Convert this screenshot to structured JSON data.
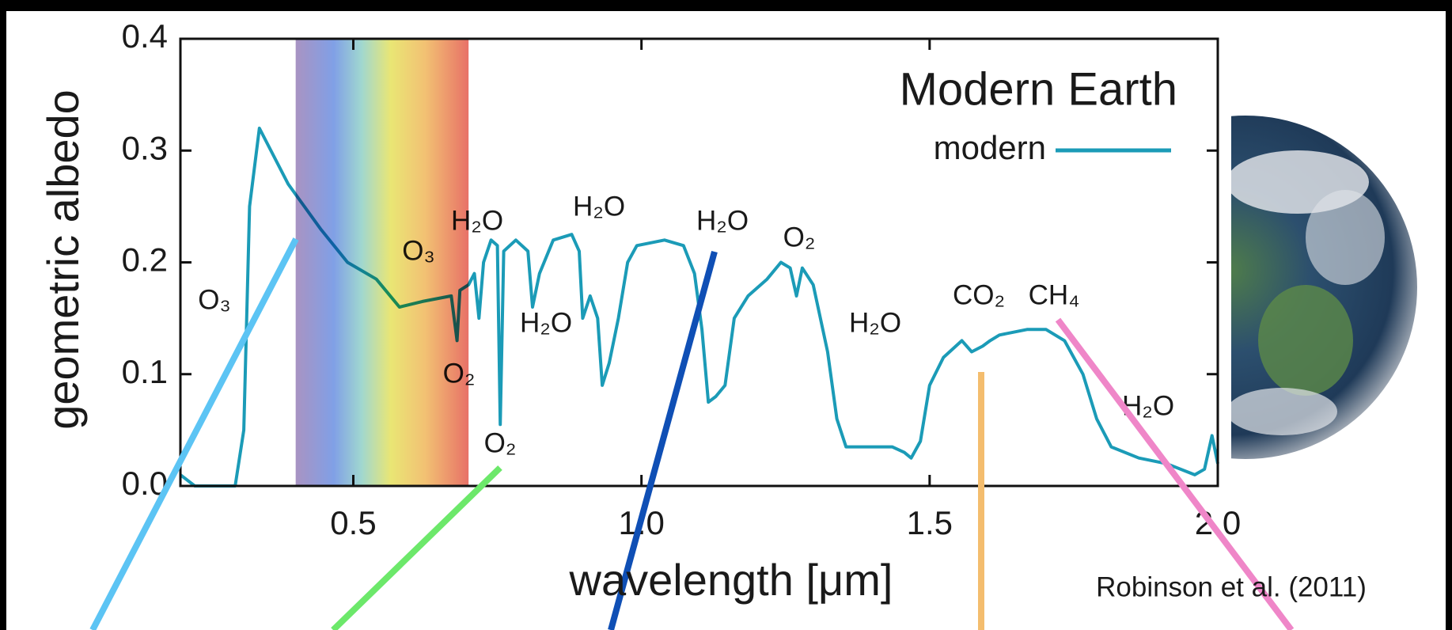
{
  "chart_data": {
    "type": "line",
    "title": "Modern Earth",
    "source": "Robinson et al. (2011)",
    "xlabel": "wavelength [μm]",
    "ylabel": "geometric albedo",
    "xlim": [
      0.2,
      2.0
    ],
    "ylim": [
      0,
      0.4
    ],
    "xticks": [
      0.5,
      {
        "value": 1,
        "label": "1.0"
      },
      1.5,
      {
        "value": 2,
        "label": "2.0"
      }
    ],
    "yticks": [
      {
        "value": 0,
        "label": "0.0"
      },
      0.1,
      0.2,
      0.3,
      0.4
    ],
    "shaded_xrange": [
      0.4,
      0.7
    ],
    "legend": "upper right",
    "x": [
      0.2,
      0.225,
      0.295,
      0.31,
      0.32,
      0.337,
      0.387,
      0.443,
      0.49,
      0.54,
      0.58,
      0.62,
      0.67,
      0.68,
      0.685,
      0.7,
      0.71,
      0.718,
      0.726,
      0.739,
      0.75,
      0.755,
      0.761,
      0.782,
      0.803,
      0.811,
      0.823,
      0.847,
      0.879,
      0.892,
      0.898,
      0.911,
      0.924,
      0.932,
      0.944,
      0.96,
      0.976,
      0.992,
      1.04,
      1.073,
      1.092,
      1.105,
      1.116,
      1.129,
      1.145,
      1.161,
      1.185,
      1.218,
      1.242,
      1.258,
      1.269,
      1.279,
      1.298,
      1.323,
      1.339,
      1.355,
      1.395,
      1.435,
      1.456,
      1.468,
      1.484,
      1.5,
      1.524,
      1.556,
      1.573,
      1.592,
      1.605,
      1.621,
      1.669,
      1.702,
      1.734,
      1.766,
      1.79,
      1.815,
      1.863,
      1.911,
      1.96,
      1.977,
      1.99,
      2.0
    ],
    "series": [
      {
        "name": "modern",
        "color": "#1b9bb7",
        "values": [
          0.01,
          0.0,
          0.0,
          0.05,
          0.25,
          0.32,
          0.27,
          0.23,
          0.2,
          0.185,
          0.16,
          0.165,
          0.17,
          0.13,
          0.175,
          0.18,
          0.19,
          0.15,
          0.2,
          0.22,
          0.215,
          0.055,
          0.21,
          0.22,
          0.21,
          0.16,
          0.19,
          0.22,
          0.225,
          0.21,
          0.15,
          0.17,
          0.15,
          0.09,
          0.11,
          0.15,
          0.2,
          0.215,
          0.22,
          0.215,
          0.19,
          0.14,
          0.075,
          0.08,
          0.09,
          0.15,
          0.17,
          0.185,
          0.2,
          0.195,
          0.17,
          0.195,
          0.18,
          0.12,
          0.06,
          0.035,
          0.035,
          0.035,
          0.03,
          0.025,
          0.04,
          0.09,
          0.115,
          0.13,
          0.12,
          0.125,
          0.13,
          0.135,
          0.14,
          0.14,
          0.13,
          0.1,
          0.06,
          0.035,
          0.025,
          0.02,
          0.01,
          0.015,
          0.045,
          0.02
        ]
      }
    ],
    "annotations": [
      "O₃",
      "O₃",
      "H₂O",
      "O₂",
      "H₂O",
      "H₂O",
      "O₂",
      "H₂O",
      "O₂",
      "H₂O",
      "CO₂",
      "CH₄",
      "H₂O"
    ]
  }
}
